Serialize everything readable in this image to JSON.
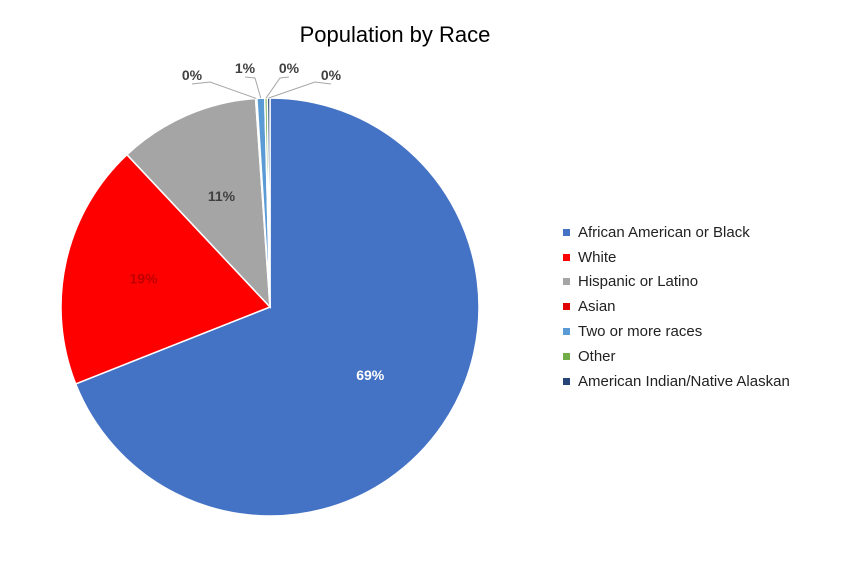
{
  "chart_data": {
    "type": "pie",
    "title": "Population by Race",
    "slices": [
      {
        "label": "African American or Black",
        "value": 69.0,
        "display": "69%",
        "color": "#4472C4",
        "label_color": "#ffffff"
      },
      {
        "label": "White",
        "value": 19.0,
        "display": "19%",
        "color": "#FF0000",
        "label_color": "#C00000"
      },
      {
        "label": "Hispanic or Latino",
        "value": 10.9,
        "display": "11%",
        "color": "#A5A5A5",
        "label_color": "#404040"
      },
      {
        "label": "Asian",
        "value": 0.1,
        "display": "0%",
        "color": "#E00000",
        "label_color": "#404040"
      },
      {
        "label": "Two or more races",
        "value": 0.6,
        "display": "1%",
        "color": "#5B9BD5",
        "label_color": "#404040"
      },
      {
        "label": "Other",
        "value": 0.2,
        "display": "0%",
        "color": "#70AD47",
        "label_color": "#404040"
      },
      {
        "label": "American Indian/Native Alaskan",
        "value": 0.2,
        "display": "0%",
        "color": "#264478",
        "label_color": "#404040"
      }
    ],
    "legend_position": "right"
  }
}
